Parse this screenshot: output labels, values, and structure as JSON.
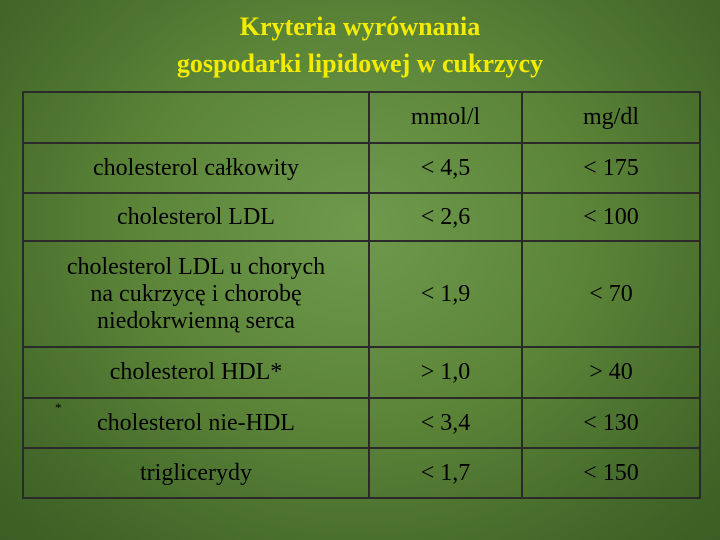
{
  "title": {
    "line1": "Kryteria wyrównania",
    "line2": "gospodarki lipidowej w cukrzycy"
  },
  "table": {
    "header": {
      "parameter": "",
      "unit_mmol": "mmol/l",
      "unit_mg": "mg/dl"
    },
    "rows": [
      {
        "name": "cholesterol całkowity",
        "mmol": "< 4,5",
        "mg": "< 175"
      },
      {
        "name": "cholesterol LDL",
        "mmol": "< 2,6",
        "mg": "< 100"
      },
      {
        "name_line1": "cholesterol LDL u chorych",
        "name_line2": "na cukrzycę i chorobę",
        "name_line3": "niedokrwienną serca",
        "mmol": "< 1,9",
        "mg": "< 70"
      },
      {
        "name": "cholesterol HDL*",
        "mmol": "> 1,0",
        "mg": "> 40"
      },
      {
        "marker": "*",
        "name": "cholesterol nie-HDL",
        "mmol": "<  3,4",
        "mg": "< 130"
      },
      {
        "name": "triglicerydy",
        "mmol": "< 1,7",
        "mg": "< 150"
      }
    ]
  },
  "colors": {
    "background": "#5b8438",
    "title": "#f4ec00",
    "text": "#000000",
    "grid": "#2a2a2a"
  }
}
